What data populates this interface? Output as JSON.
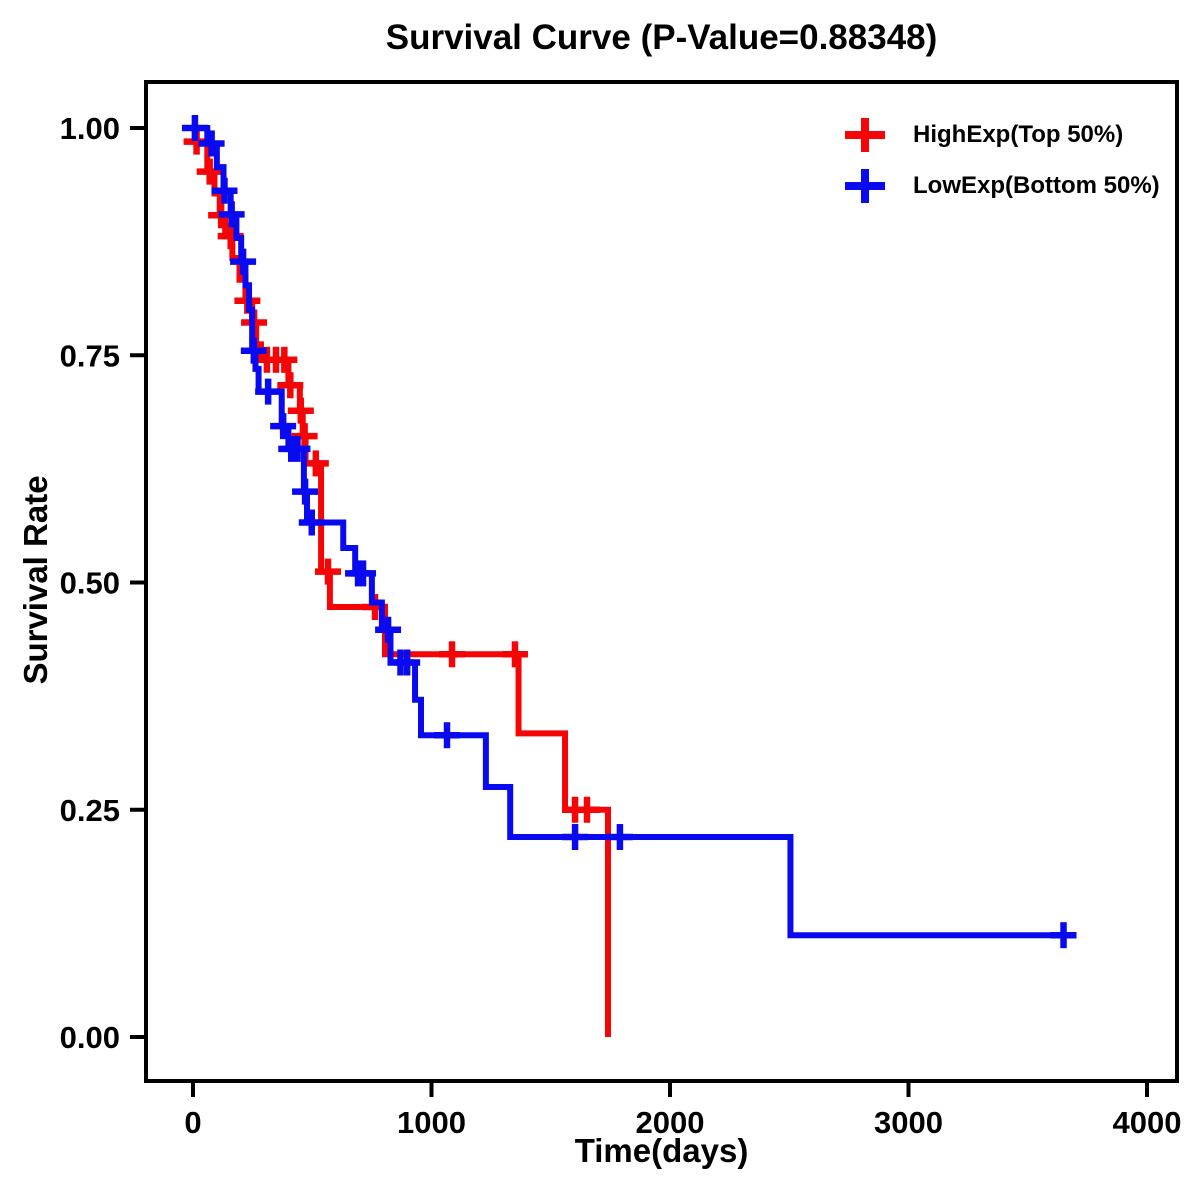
{
  "chart_data": {
    "type": "line",
    "subtype": "kaplan-meier-step-survival",
    "title": "Survival Curve (P-Value=0.88348)",
    "xlabel": "Time(days)",
    "ylabel": "Survival Rate",
    "xlim": [
      -200,
      4130
    ],
    "ylim": [
      -0.05,
      1.05
    ],
    "grid": false,
    "legend_position": "top-right",
    "xticks": [
      {
        "label": "0",
        "value": 0
      },
      {
        "label": "1000",
        "value": 1000
      },
      {
        "label": "2000",
        "value": 2000
      },
      {
        "label": "3000",
        "value": 3000
      },
      {
        "label": "4000",
        "value": 4000
      }
    ],
    "yticks": [
      {
        "label": "0.00",
        "value": 0
      },
      {
        "label": "0.25",
        "value": 0.25
      },
      {
        "label": "0.50",
        "value": 0.5
      },
      {
        "label": "0.75",
        "value": 0.75
      },
      {
        "label": "1.00",
        "value": 1.0
      }
    ],
    "series": [
      {
        "name": "HighExp(Top 50%)",
        "color": "#f50505",
        "marker": "plus-censor",
        "end_time": 1740,
        "steps": [
          [
            0,
            1.0
          ],
          [
            10,
            0.985
          ],
          [
            60,
            0.952
          ],
          [
            90,
            0.928
          ],
          [
            112,
            0.904
          ],
          [
            135,
            0.881
          ],
          [
            165,
            0.857
          ],
          [
            195,
            0.833
          ],
          [
            220,
            0.81
          ],
          [
            248,
            0.786
          ],
          [
            265,
            0.762
          ],
          [
            285,
            0.745
          ],
          [
            400,
            0.717
          ],
          [
            448,
            0.689
          ],
          [
            460,
            0.661
          ],
          [
            472,
            0.631
          ],
          [
            537,
            0.512
          ],
          [
            574,
            0.473
          ],
          [
            805,
            0.421
          ],
          [
            1365,
            0.334
          ],
          [
            1560,
            0.25
          ],
          [
            1740,
            0.0
          ]
        ],
        "censors": [
          [
            15,
            0.985
          ],
          [
            70,
            0.952
          ],
          [
            118,
            0.904
          ],
          [
            158,
            0.881
          ],
          [
            228,
            0.81
          ],
          [
            256,
            0.786
          ],
          [
            310,
            0.745
          ],
          [
            348,
            0.745
          ],
          [
            383,
            0.745
          ],
          [
            408,
            0.717
          ],
          [
            452,
            0.689
          ],
          [
            468,
            0.661
          ],
          [
            515,
            0.631
          ],
          [
            566,
            0.512
          ],
          [
            763,
            0.473
          ],
          [
            1086,
            0.421
          ],
          [
            1350,
            0.421
          ],
          [
            1602,
            0.25
          ],
          [
            1652,
            0.25
          ]
        ]
      },
      {
        "name": "LowExp(Bottom 50%)",
        "color": "#0a0af0",
        "marker": "plus-censor",
        "end_time": 3700,
        "steps": [
          [
            0,
            1.0
          ],
          [
            60,
            0.983
          ],
          [
            100,
            0.957
          ],
          [
            128,
            0.931
          ],
          [
            158,
            0.905
          ],
          [
            182,
            0.879
          ],
          [
            202,
            0.853
          ],
          [
            220,
            0.827
          ],
          [
            235,
            0.8
          ],
          [
            248,
            0.755
          ],
          [
            262,
            0.735
          ],
          [
            275,
            0.71
          ],
          [
            372,
            0.672
          ],
          [
            400,
            0.647
          ],
          [
            465,
            0.6
          ],
          [
            478,
            0.566
          ],
          [
            630,
            0.538
          ],
          [
            680,
            0.51
          ],
          [
            750,
            0.478
          ],
          [
            792,
            0.448
          ],
          [
            828,
            0.412
          ],
          [
            931,
            0.371
          ],
          [
            956,
            0.332
          ],
          [
            1228,
            0.275
          ],
          [
            1330,
            0.22
          ],
          [
            2505,
            0.112
          ]
        ],
        "censors": [
          [
            8,
            1.0
          ],
          [
            78,
            0.983
          ],
          [
            132,
            0.931
          ],
          [
            162,
            0.905
          ],
          [
            210,
            0.853
          ],
          [
            255,
            0.755
          ],
          [
            315,
            0.71
          ],
          [
            378,
            0.672
          ],
          [
            412,
            0.647
          ],
          [
            438,
            0.647
          ],
          [
            470,
            0.6
          ],
          [
            498,
            0.566
          ],
          [
            692,
            0.51
          ],
          [
            713,
            0.51
          ],
          [
            818,
            0.448
          ],
          [
            870,
            0.412
          ],
          [
            898,
            0.412
          ],
          [
            1065,
            0.332
          ],
          [
            1602,
            0.22
          ],
          [
            1790,
            0.22
          ],
          [
            3650,
            0.112
          ]
        ]
      }
    ]
  }
}
